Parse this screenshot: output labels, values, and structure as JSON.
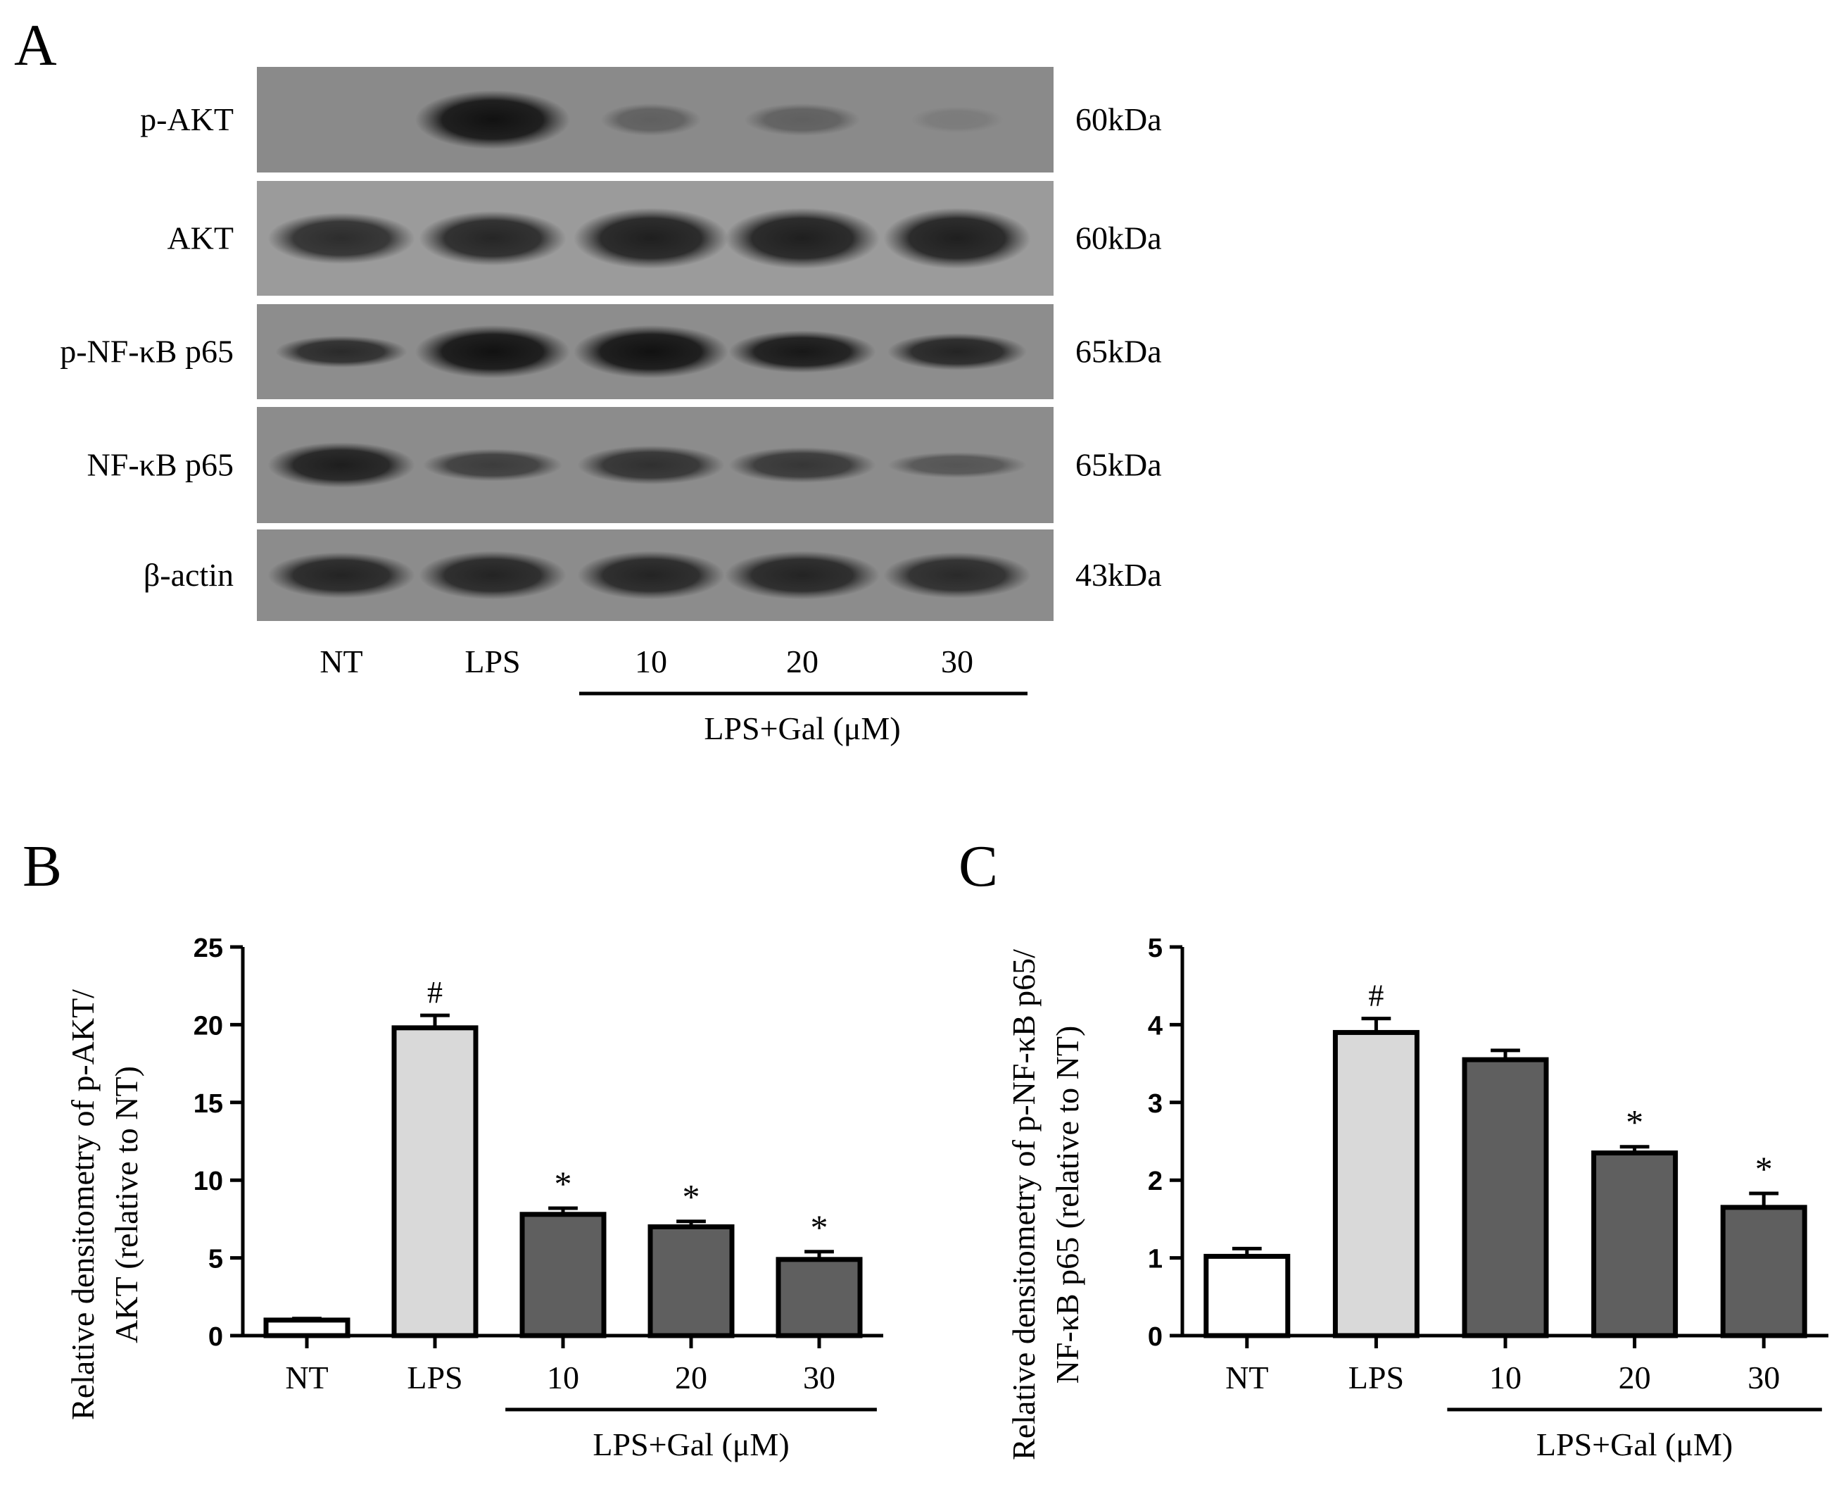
{
  "panel_a": {
    "letter": "A",
    "blots": [
      {
        "label": "p-AKT",
        "size": "60kDa",
        "bg": "#8a8a8a",
        "bands": [
          0,
          1.0,
          0.35,
          0.35,
          0.12
        ],
        "band_width": [
          0,
          1.0,
          0.65,
          0.75,
          0.6
        ],
        "band_height": [
          0,
          1.0,
          0.55,
          0.55,
          0.45
        ]
      },
      {
        "label": "AKT",
        "size": "60kDa",
        "bg": "#9b9b9b",
        "bands": [
          0.8,
          0.85,
          0.9,
          0.9,
          0.9
        ],
        "band_width": [
          0.95,
          0.95,
          1.0,
          1.0,
          0.95
        ],
        "band_height": [
          0.8,
          0.85,
          0.95,
          0.95,
          0.95
        ]
      },
      {
        "label": "p-NF-κB p65",
        "size": "65kDa",
        "bg": "#8d8d8d",
        "bands": [
          0.8,
          1.0,
          1.0,
          0.95,
          0.85
        ],
        "band_width": [
          0.85,
          1.0,
          1.0,
          0.95,
          0.9
        ],
        "band_height": [
          0.6,
          1.0,
          1.0,
          0.8,
          0.7
        ]
      },
      {
        "label": "NF-κB p65",
        "size": "65kDa",
        "bg": "#8c8c8c",
        "bands": [
          0.9,
          0.65,
          0.75,
          0.7,
          0.45
        ],
        "band_width": [
          0.95,
          0.9,
          0.95,
          0.95,
          0.9
        ],
        "band_height": [
          0.7,
          0.5,
          0.6,
          0.55,
          0.4
        ]
      },
      {
        "label": "β-actin",
        "size": "43kDa",
        "bg": "#8c8c8c",
        "bands": [
          0.85,
          0.85,
          0.85,
          0.85,
          0.8
        ],
        "band_width": [
          0.95,
          0.95,
          0.95,
          1.0,
          0.95
        ],
        "band_height": [
          0.9,
          0.95,
          0.95,
          0.95,
          0.9
        ]
      }
    ],
    "lanes": [
      "NT",
      "LPS",
      "10",
      "20",
      "30"
    ],
    "group_label": "LPS+Gal (μM)"
  },
  "chart_data": [
    {
      "panel": "B",
      "type": "bar",
      "categories": [
        "NT",
        "LPS",
        "10",
        "20",
        "30"
      ],
      "values": [
        1.0,
        19.8,
        7.8,
        7.0,
        4.9
      ],
      "errors": [
        0.1,
        0.8,
        0.4,
        0.35,
        0.5
      ],
      "annotations": [
        "",
        "#",
        "*",
        "*",
        "*"
      ],
      "bar_colors": [
        "#ffffff",
        "#d9d9d9",
        "#5f5f5f",
        "#5f5f5f",
        "#5f5f5f"
      ],
      "ylabel_lines": [
        "Relative densitometry of p-AKT/",
        "AKT (relative to NT)"
      ],
      "xlabel": "",
      "ylim": [
        0,
        25
      ],
      "yticks": [
        0,
        5,
        10,
        15,
        20,
        25
      ],
      "group_label": "LPS+Gal (μM)",
      "grid": false
    },
    {
      "panel": "C",
      "type": "bar",
      "categories": [
        "NT",
        "LPS",
        "10",
        "20",
        "30"
      ],
      "values": [
        1.02,
        3.9,
        3.55,
        2.35,
        1.65
      ],
      "errors": [
        0.1,
        0.18,
        0.12,
        0.08,
        0.18
      ],
      "annotations": [
        "",
        "#",
        "",
        "*",
        "*"
      ],
      "bar_colors": [
        "#ffffff",
        "#d9d9d9",
        "#5f5f5f",
        "#5f5f5f",
        "#5f5f5f"
      ],
      "ylabel_lines": [
        "Relative densitometry of p-NF-κB p65/",
        "NF-κB p65 (relative to NT)"
      ],
      "xlabel": "",
      "ylim": [
        0,
        5
      ],
      "yticks": [
        0,
        1,
        2,
        3,
        4,
        5
      ],
      "group_label": "LPS+Gal (μM)",
      "grid": false
    }
  ]
}
